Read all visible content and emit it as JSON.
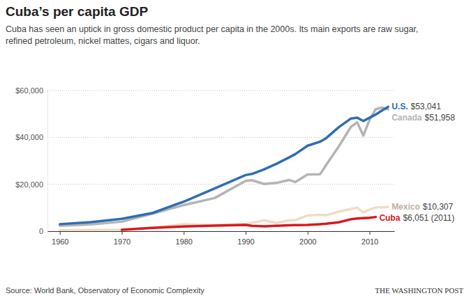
{
  "chart_data": {
    "type": "line",
    "title": "Cuba’s per capita GDP",
    "subtitle": "Cuba has seen an uptick in gross domestic product per capita in the 2000s. Its main exports are raw sugar, refined petroleum, nickel mattes, cigars and liquor.",
    "source": "Source: World Bank, Observatory of Economic Complexity",
    "credit": "THE WASHINGTON POST",
    "x": [
      1960,
      1965,
      1970,
      1975,
      1980,
      1985,
      1990,
      1991,
      1993,
      1995,
      1997,
      1998,
      2000,
      2002,
      2003,
      2005,
      2007,
      2008,
      2009,
      2010,
      2011,
      2012,
      2013
    ],
    "xlim": [
      1958,
      2014
    ],
    "xticks": [
      1960,
      1970,
      1980,
      1990,
      2000,
      2010
    ],
    "ylim": [
      0,
      60000
    ],
    "yticks": [
      0,
      {
        "value": 20000,
        "label": "$20,000"
      },
      {
        "value": 40000,
        "label": "$40,000"
      },
      {
        "value": 60000,
        "label": "$60,000"
      }
    ],
    "grid": true,
    "series": [
      {
        "name": "U.S.",
        "color": "#2f6db4",
        "values": [
          3007,
          3828,
          5247,
          7801,
          12598,
          18237,
          23955,
          24405,
          26387,
          28782,
          31459,
          32854,
          36450,
          38166,
          39677,
          44308,
          48061,
          48401,
          47002,
          48374,
          49782,
          51457,
          53041
        ],
        "value_labels": [
          null,
          null,
          null,
          null,
          null,
          null,
          null,
          null,
          null,
          null,
          null,
          null,
          null,
          null,
          null,
          null,
          null,
          null,
          null,
          null,
          null,
          null,
          "$53,041"
        ]
      },
      {
        "name": "Canada",
        "color": "#b4b4b4",
        "values": [
          2294,
          2873,
          4047,
          7511,
          11135,
          14140,
          21448,
          21768,
          20121,
          20613,
          21846,
          20961,
          24190,
          24255,
          28300,
          36028,
          44544,
          46400,
          40773,
          47465,
          52087,
          52733,
          51958
        ],
        "value_labels": [
          null,
          null,
          null,
          null,
          null,
          null,
          null,
          null,
          null,
          null,
          null,
          null,
          null,
          null,
          null,
          null,
          null,
          null,
          null,
          null,
          null,
          null,
          "$51,958"
        ]
      },
      {
        "name": "Mexico",
        "color": "#efdcc6",
        "values": [
          350,
          490,
          680,
          1480,
          3000,
          2600,
          3100,
          3600,
          4600,
          3500,
          4600,
          4700,
          6700,
          7000,
          6800,
          8300,
          9500,
          10000,
          8000,
          9200,
          10100,
          10200,
          10307
        ],
        "value_labels": [
          null,
          null,
          null,
          null,
          null,
          null,
          null,
          null,
          null,
          null,
          null,
          null,
          null,
          null,
          null,
          null,
          null,
          null,
          null,
          null,
          null,
          null,
          "$10,307"
        ]
      },
      {
        "name": "Cuba",
        "color": "#d7191c",
        "values": [
          null,
          null,
          560,
          1400,
          2000,
          2400,
          2700,
          2300,
          2100,
          2300,
          2500,
          2600,
          2700,
          3000,
          3200,
          3800,
          5100,
          5400,
          5600,
          5700,
          6051,
          null,
          null
        ],
        "value_labels": [
          null,
          null,
          null,
          null,
          null,
          null,
          null,
          null,
          null,
          null,
          null,
          null,
          null,
          null,
          null,
          null,
          null,
          null,
          null,
          null,
          "$6,051 (2011)",
          null,
          null
        ]
      }
    ]
  }
}
